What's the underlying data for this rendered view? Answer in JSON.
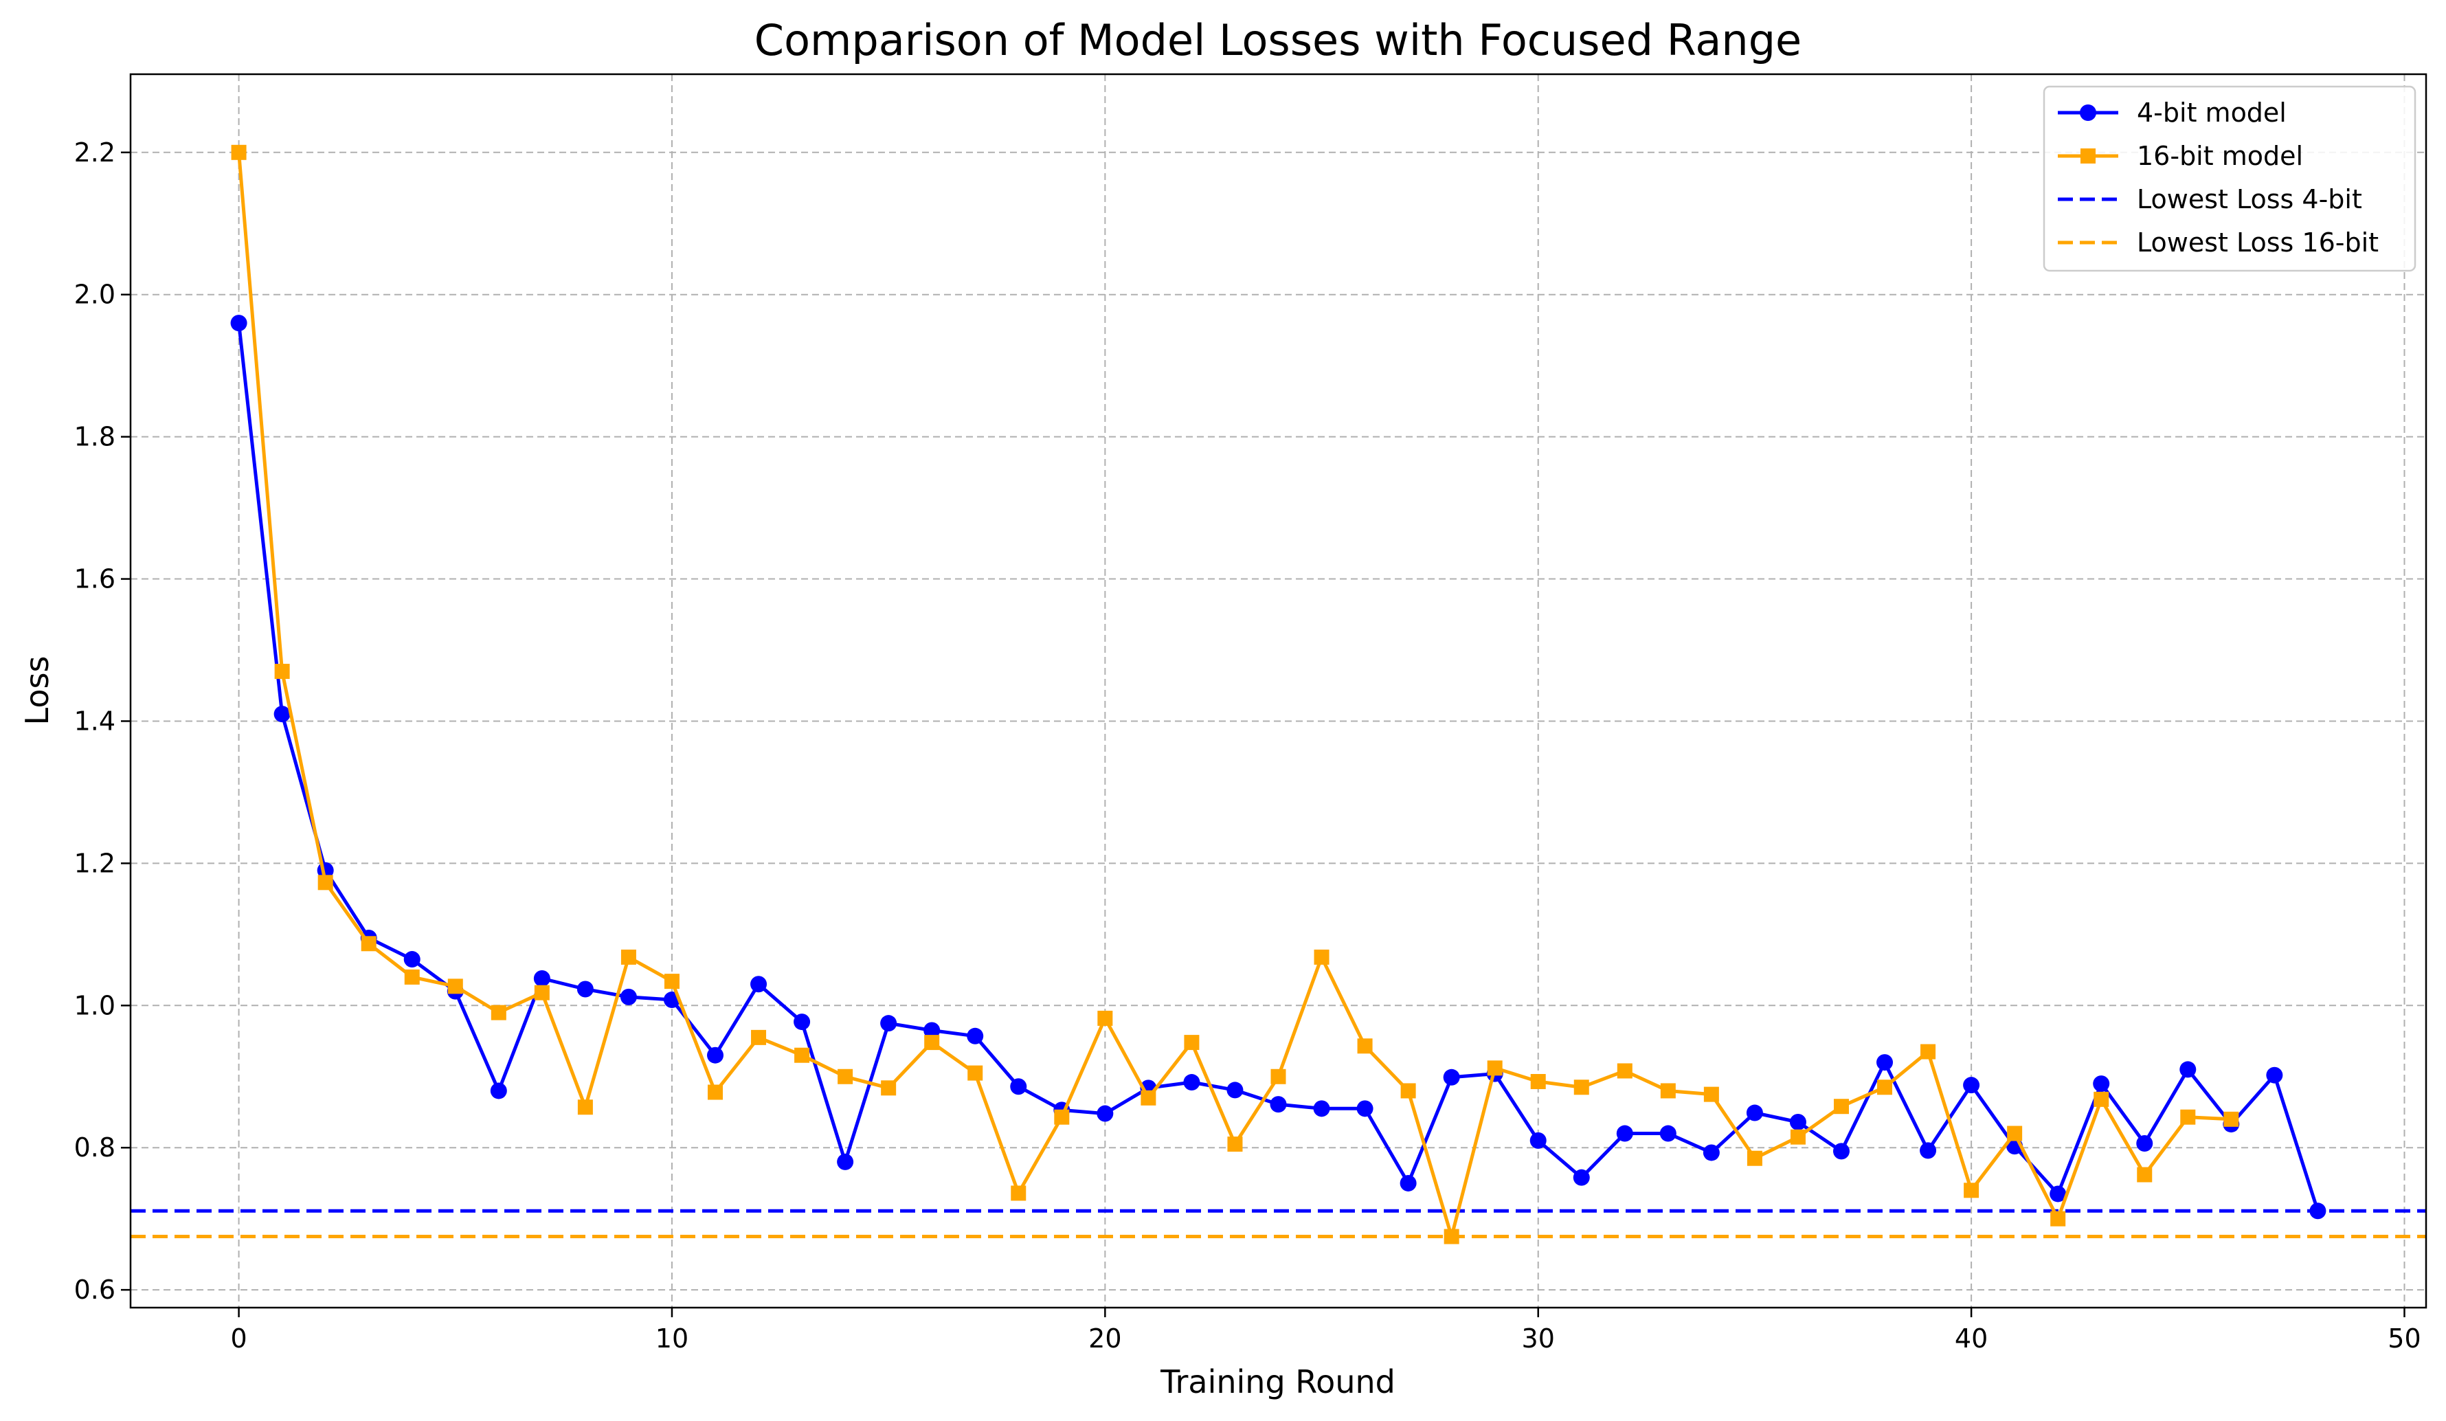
{
  "chart_data": {
    "type": "line",
    "title": "Comparison of Model Losses with Focused Range",
    "xlabel": "Training Round",
    "ylabel": "Loss",
    "xlim": [
      -2.5,
      50.5
    ],
    "ylim": [
      0.575,
      2.31
    ],
    "xticks": [
      "0",
      "10",
      "20",
      "30",
      "40",
      "50"
    ],
    "yticks": [
      "0.6",
      "0.8",
      "1.0",
      "1.2",
      "1.4",
      "1.6",
      "1.8",
      "2.0",
      "2.2"
    ],
    "grid": true,
    "legend_position": "top-right",
    "series": [
      {
        "name": "4-bit model",
        "color": "#0000ff",
        "marker": "circle",
        "x": [
          0,
          1,
          2,
          3,
          4,
          5,
          6,
          7,
          8,
          9,
          10,
          11,
          12,
          13,
          14,
          15,
          16,
          17,
          18,
          19,
          20,
          21,
          22,
          23,
          24,
          25,
          26,
          27,
          28,
          29,
          30,
          31,
          32,
          33,
          34,
          35,
          36,
          37,
          38,
          39,
          40,
          41,
          42,
          43,
          44,
          45,
          46,
          47,
          48
        ],
        "values": [
          1.96,
          1.41,
          1.19,
          1.095,
          1.065,
          1.02,
          0.88,
          1.038,
          1.023,
          1.012,
          1.008,
          0.93,
          1.03,
          0.977,
          0.78,
          0.975,
          0.965,
          0.957,
          0.886,
          0.853,
          0.848,
          0.884,
          0.892,
          0.881,
          0.861,
          0.855,
          0.855,
          0.75,
          0.899,
          0.904,
          0.81,
          0.758,
          0.82,
          0.82,
          0.793,
          0.849,
          0.836,
          0.795,
          0.92,
          0.796,
          0.888,
          0.802,
          0.735,
          0.89,
          0.806,
          0.91,
          0.833,
          0.902,
          0.711
        ]
      },
      {
        "name": "16-bit model",
        "color": "#ffa500",
        "marker": "square",
        "x": [
          0,
          1,
          2,
          3,
          4,
          5,
          6,
          7,
          8,
          9,
          10,
          11,
          12,
          13,
          14,
          15,
          16,
          17,
          18,
          19,
          20,
          21,
          22,
          23,
          24,
          25,
          26,
          27,
          28,
          29,
          30,
          31,
          32,
          33,
          34,
          35,
          36,
          37,
          38,
          39,
          40,
          41,
          42,
          43,
          44,
          45,
          46
        ],
        "values": [
          2.2,
          1.47,
          1.173,
          1.087,
          1.04,
          1.027,
          0.99,
          1.018,
          0.857,
          1.068,
          1.034,
          0.878,
          0.955,
          0.93,
          0.9,
          0.884,
          0.948,
          0.905,
          0.736,
          0.843,
          0.982,
          0.87,
          0.948,
          0.805,
          0.9,
          1.068,
          0.943,
          0.88,
          0.675,
          0.912,
          0.893,
          0.885,
          0.908,
          0.88,
          0.875,
          0.785,
          0.815,
          0.858,
          0.885,
          0.935,
          0.74,
          0.82,
          0.7,
          0.868,
          0.762,
          0.843,
          0.84
        ]
      }
    ],
    "reference_lines": [
      {
        "name": "Lowest Loss 4-bit",
        "y": 0.711,
        "color": "#0000ff",
        "style": "dashed"
      },
      {
        "name": "Lowest Loss 16-bit",
        "y": 0.675,
        "color": "#ffa500",
        "style": "dashed"
      }
    ]
  }
}
